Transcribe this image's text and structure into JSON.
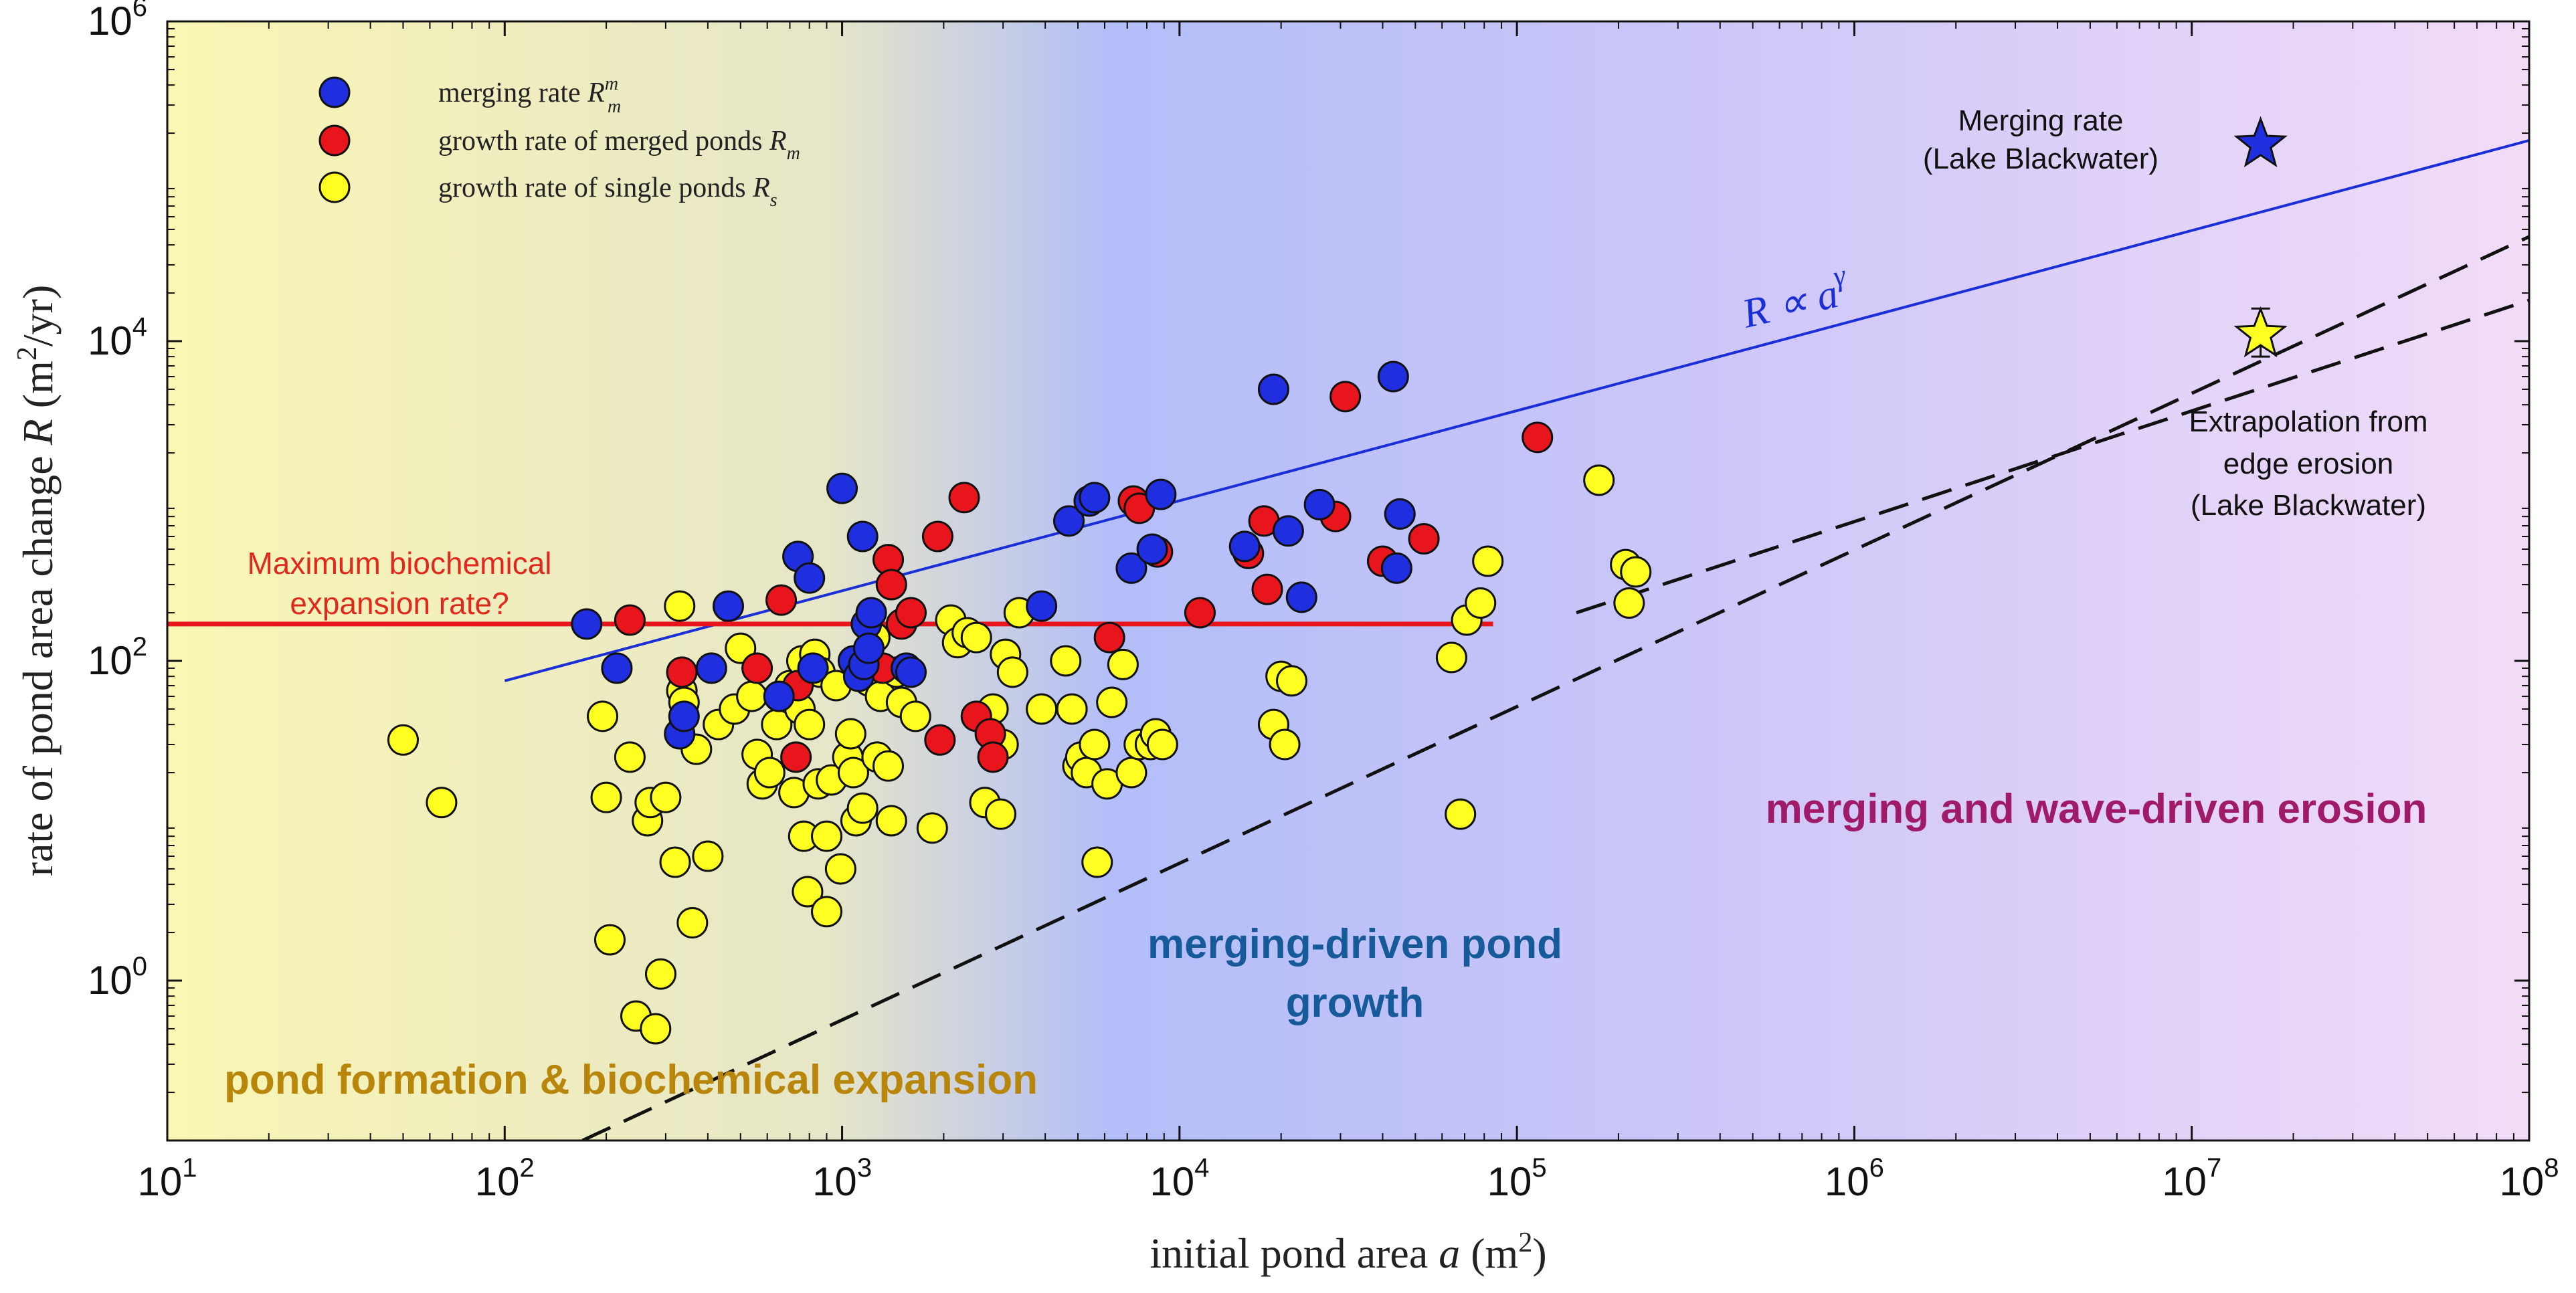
{
  "chart_data": {
    "type": "scatter",
    "scale": {
      "x": "log",
      "y": "log"
    },
    "xlabel": "initial pond area a (m²)",
    "ylabel": "rate of pond area change R (m²/yr)",
    "xlim": [
      10,
      100000000
    ],
    "ylim": [
      0.1,
      1000000
    ],
    "x_ticks": [
      {
        "base": "10",
        "exp": "1",
        "value": 10
      },
      {
        "base": "10",
        "exp": "2",
        "value": 100
      },
      {
        "base": "10",
        "exp": "3",
        "value": 1000
      },
      {
        "base": "10",
        "exp": "4",
        "value": 10000
      },
      {
        "base": "10",
        "exp": "5",
        "value": 100000
      },
      {
        "base": "10",
        "exp": "6",
        "value": 1000000
      },
      {
        "base": "10",
        "exp": "7",
        "value": 10000000
      },
      {
        "base": "10",
        "exp": "8",
        "value": 100000000
      }
    ],
    "y_ticks": [
      {
        "base": "10",
        "exp": "0",
        "value": 1
      },
      {
        "base": "10",
        "exp": "2",
        "value": 100
      },
      {
        "base": "10",
        "exp": "4",
        "value": 10000
      },
      {
        "base": "10",
        "exp": "6",
        "value": 1000000
      }
    ],
    "legend": {
      "position": "top-left",
      "entries": [
        {
          "label": "merging rate",
          "symbol": "R",
          "sup": "m",
          "sub": "m",
          "color": "#1f2fe0"
        },
        {
          "label": "growth rate of merged ponds",
          "symbol": "R",
          "sub": "m",
          "color": "#e8161c"
        },
        {
          "label": "growth rate of single ponds",
          "symbol": "R",
          "sub": "s",
          "color": "#ffff22"
        }
      ]
    },
    "series": [
      {
        "name": "merging rate R_m^m",
        "color": "#1f2fe0",
        "points": [
          [
            175,
            170
          ],
          [
            215,
            90
          ],
          [
            330,
            35
          ],
          [
            340,
            45
          ],
          [
            410,
            90
          ],
          [
            460,
            220
          ],
          [
            650,
            60
          ],
          [
            740,
            450
          ],
          [
            800,
            330
          ],
          [
            820,
            90
          ],
          [
            1000,
            1200
          ],
          [
            1080,
            100
          ],
          [
            1120,
            80
          ],
          [
            1150,
            600
          ],
          [
            1160,
            95
          ],
          [
            1180,
            170
          ],
          [
            1200,
            120
          ],
          [
            1220,
            200
          ],
          [
            1550,
            90
          ],
          [
            1600,
            85
          ],
          [
            3900,
            220
          ],
          [
            4700,
            750
          ],
          [
            5400,
            1000
          ],
          [
            5600,
            1050
          ],
          [
            7200,
            380
          ],
          [
            8300,
            500
          ],
          [
            8800,
            1100
          ],
          [
            15600,
            520
          ],
          [
            19000,
            5000
          ],
          [
            21000,
            650
          ],
          [
            23000,
            250
          ],
          [
            26000,
            950
          ],
          [
            43000,
            6000
          ],
          [
            44000,
            380
          ],
          [
            45000,
            830
          ]
        ]
      },
      {
        "name": "growth rate of merged ponds R_m",
        "color": "#e8161c",
        "points": [
          [
            235,
            180
          ],
          [
            335,
            85
          ],
          [
            560,
            90
          ],
          [
            660,
            240
          ],
          [
            740,
            70
          ],
          [
            730,
            25
          ],
          [
            1320,
            90
          ],
          [
            1370,
            430
          ],
          [
            1400,
            300
          ],
          [
            1500,
            170
          ],
          [
            1600,
            200
          ],
          [
            1920,
            600
          ],
          [
            1950,
            32
          ],
          [
            2300,
            1050
          ],
          [
            2500,
            45
          ],
          [
            2750,
            35
          ],
          [
            2800,
            25
          ],
          [
            6200,
            140
          ],
          [
            7300,
            1000
          ],
          [
            7600,
            900
          ],
          [
            8600,
            480
          ],
          [
            11500,
            200
          ],
          [
            16000,
            470
          ],
          [
            17800,
            750
          ],
          [
            18200,
            280
          ],
          [
            31000,
            4500
          ],
          [
            29000,
            800
          ],
          [
            40000,
            420
          ],
          [
            53000,
            580
          ],
          [
            115000,
            2500
          ]
        ]
      },
      {
        "name": "growth rate of single ponds R_s",
        "color": "#ffff22",
        "points": [
          [
            50,
            32
          ],
          [
            65,
            13
          ],
          [
            195,
            45
          ],
          [
            200,
            14
          ],
          [
            205,
            1.8
          ],
          [
            235,
            25
          ],
          [
            245,
            0.6
          ],
          [
            265,
            10
          ],
          [
            270,
            13
          ],
          [
            280,
            0.5
          ],
          [
            290,
            1.1
          ],
          [
            300,
            14
          ],
          [
            320,
            5.5
          ],
          [
            330,
            220
          ],
          [
            335,
            65
          ],
          [
            340,
            55
          ],
          [
            360,
            2.3
          ],
          [
            370,
            28
          ],
          [
            400,
            6
          ],
          [
            430,
            40
          ],
          [
            480,
            50
          ],
          [
            500,
            120
          ],
          [
            540,
            60
          ],
          [
            560,
            26
          ],
          [
            580,
            17
          ],
          [
            610,
            20
          ],
          [
            640,
            40
          ],
          [
            670,
            60
          ],
          [
            700,
            70
          ],
          [
            720,
            15
          ],
          [
            750,
            50
          ],
          [
            760,
            100
          ],
          [
            770,
            8
          ],
          [
            790,
            3.6
          ],
          [
            800,
            40
          ],
          [
            830,
            110
          ],
          [
            850,
            17
          ],
          [
            860,
            85
          ],
          [
            900,
            8
          ],
          [
            900,
            2.7
          ],
          [
            930,
            18
          ],
          [
            960,
            70
          ],
          [
            990,
            5
          ],
          [
            1040,
            25
          ],
          [
            1060,
            35
          ],
          [
            1080,
            20
          ],
          [
            1100,
            10
          ],
          [
            1150,
            12
          ],
          [
            1200,
            75
          ],
          [
            1250,
            140
          ],
          [
            1270,
            25
          ],
          [
            1300,
            60
          ],
          [
            1370,
            22
          ],
          [
            1400,
            10
          ],
          [
            1450,
            85
          ],
          [
            1500,
            55
          ],
          [
            1650,
            45
          ],
          [
            1850,
            9
          ],
          [
            2100,
            180
          ],
          [
            2200,
            130
          ],
          [
            2350,
            150
          ],
          [
            2500,
            140
          ],
          [
            2650,
            13
          ],
          [
            2800,
            50
          ],
          [
            2950,
            11
          ],
          [
            3000,
            30
          ],
          [
            3050,
            110
          ],
          [
            3200,
            85
          ],
          [
            3350,
            200
          ],
          [
            3900,
            50
          ],
          [
            4600,
            100
          ],
          [
            4800,
            50
          ],
          [
            5000,
            22
          ],
          [
            5100,
            25
          ],
          [
            5300,
            20
          ],
          [
            5600,
            30
          ],
          [
            5700,
            5.5
          ],
          [
            6100,
            17
          ],
          [
            6300,
            55
          ],
          [
            6800,
            95
          ],
          [
            7200,
            20
          ],
          [
            7600,
            30
          ],
          [
            8200,
            30
          ],
          [
            8500,
            35
          ],
          [
            8900,
            30
          ],
          [
            19000,
            40
          ],
          [
            20000,
            80
          ],
          [
            20500,
            30
          ],
          [
            21500,
            75
          ],
          [
            64000,
            105
          ],
          [
            68000,
            11
          ],
          [
            71000,
            180
          ],
          [
            78000,
            230
          ],
          [
            82000,
            420
          ],
          [
            175000,
            1350
          ],
          [
            210000,
            400
          ],
          [
            215000,
            230
          ],
          [
            225000,
            360
          ]
        ]
      }
    ],
    "lines": [
      {
        "name": "R ∝ a^γ fit",
        "color": "#1a2fd6",
        "style": "solid",
        "points": [
          [
            100,
            75
          ],
          [
            100000000,
            180000
          ]
        ]
      },
      {
        "name": "maximum biochemical expansion rate",
        "color": "#e8161c",
        "style": "solid",
        "points": [
          [
            10,
            170
          ],
          [
            85000,
            170
          ]
        ]
      },
      {
        "name": "edge erosion bound 1",
        "color": "#111111",
        "style": "dashed",
        "points": [
          [
            170,
            0.1
          ],
          [
            100000000,
            45000
          ]
        ]
      },
      {
        "name": "edge erosion bound 2",
        "color": "#111111",
        "style": "dashed",
        "points": [
          [
            150000,
            200
          ],
          [
            100000000,
            18000
          ]
        ]
      }
    ],
    "stars": [
      {
        "name": "Merging rate (Lake Blackwater)",
        "x": 16000000,
        "y": 170000,
        "color": "#1f2fe0"
      },
      {
        "name": "Extrapolation from edge erosion (Lake Blackwater)",
        "x": 16000000,
        "y": 11000,
        "err_low": 8000,
        "err_high": 16000,
        "color": "#ffff22"
      }
    ],
    "regions": [
      {
        "label": "pond formation & biochemical expansion",
        "color": "#b8860b"
      },
      {
        "label": "merging-driven pond growth",
        "line1": "merging-driven pond",
        "line2": "growth",
        "color": "#175a99"
      },
      {
        "label": "merging and wave-driven erosion",
        "color": "#a01a6a"
      }
    ],
    "annotations": {
      "max_bio_line1": "Maximum biochemical",
      "max_bio_line2": "expansion rate?",
      "merging_rate_line1": "Merging rate",
      "merging_rate_line2": "(Lake Blackwater)",
      "extrap_line1": "Extrapolation from",
      "extrap_line2": "edge erosion",
      "extrap_line3": "(Lake Blackwater)",
      "fit_label": "R ∝ a",
      "fit_exp": "γ"
    },
    "background_gradient": [
      "#faf6b4",
      "#e6e6c8",
      "#b3bef8",
      "#ccc6f8",
      "#f2dcf8"
    ]
  }
}
